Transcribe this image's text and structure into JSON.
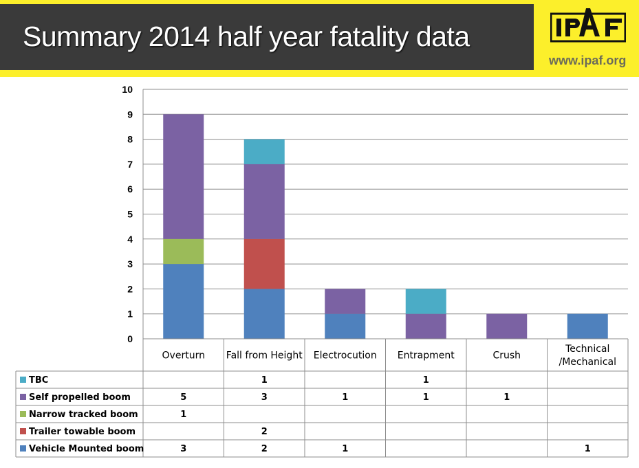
{
  "header": {
    "title": "Summary 2014 half year fatality data",
    "logo_text": "IPAF",
    "url": "www.ipaf.org"
  },
  "chart_data": {
    "type": "bar",
    "stacked": true,
    "categories": [
      "Overturn",
      "Fall from Height",
      "Electrocution",
      "Entrapment",
      "Crush",
      "Technical /Mechanical"
    ],
    "category_lines": [
      [
        "Overturn"
      ],
      [
        "Fall from Height"
      ],
      [
        "Electrocution"
      ],
      [
        "Entrapment"
      ],
      [
        "Crush"
      ],
      [
        "Technical",
        "/Mechanical"
      ]
    ],
    "ylim": [
      0,
      10
    ],
    "yticks": [
      "0",
      "1",
      "2",
      "3",
      "4",
      "5",
      "6",
      "7",
      "8",
      "9",
      "10"
    ],
    "grid": true,
    "legend": "data-table-below",
    "series": [
      {
        "name": "TBC",
        "color": "#4bacc6",
        "values": [
          null,
          1,
          null,
          1,
          null,
          null
        ]
      },
      {
        "name": "Self propelled boom",
        "color": "#7b62a3",
        "values": [
          5,
          3,
          1,
          1,
          1,
          null
        ]
      },
      {
        "name": "Narrow tracked boom",
        "color": "#9bbb59",
        "values": [
          1,
          null,
          null,
          null,
          null,
          null
        ]
      },
      {
        "name": "Trailer towable boom",
        "color": "#c0504d",
        "values": [
          null,
          2,
          null,
          null,
          null,
          null
        ]
      },
      {
        "name": "Vehicle Mounted boom",
        "color": "#4f81bd",
        "values": [
          3,
          2,
          1,
          null,
          null,
          1
        ]
      }
    ]
  }
}
